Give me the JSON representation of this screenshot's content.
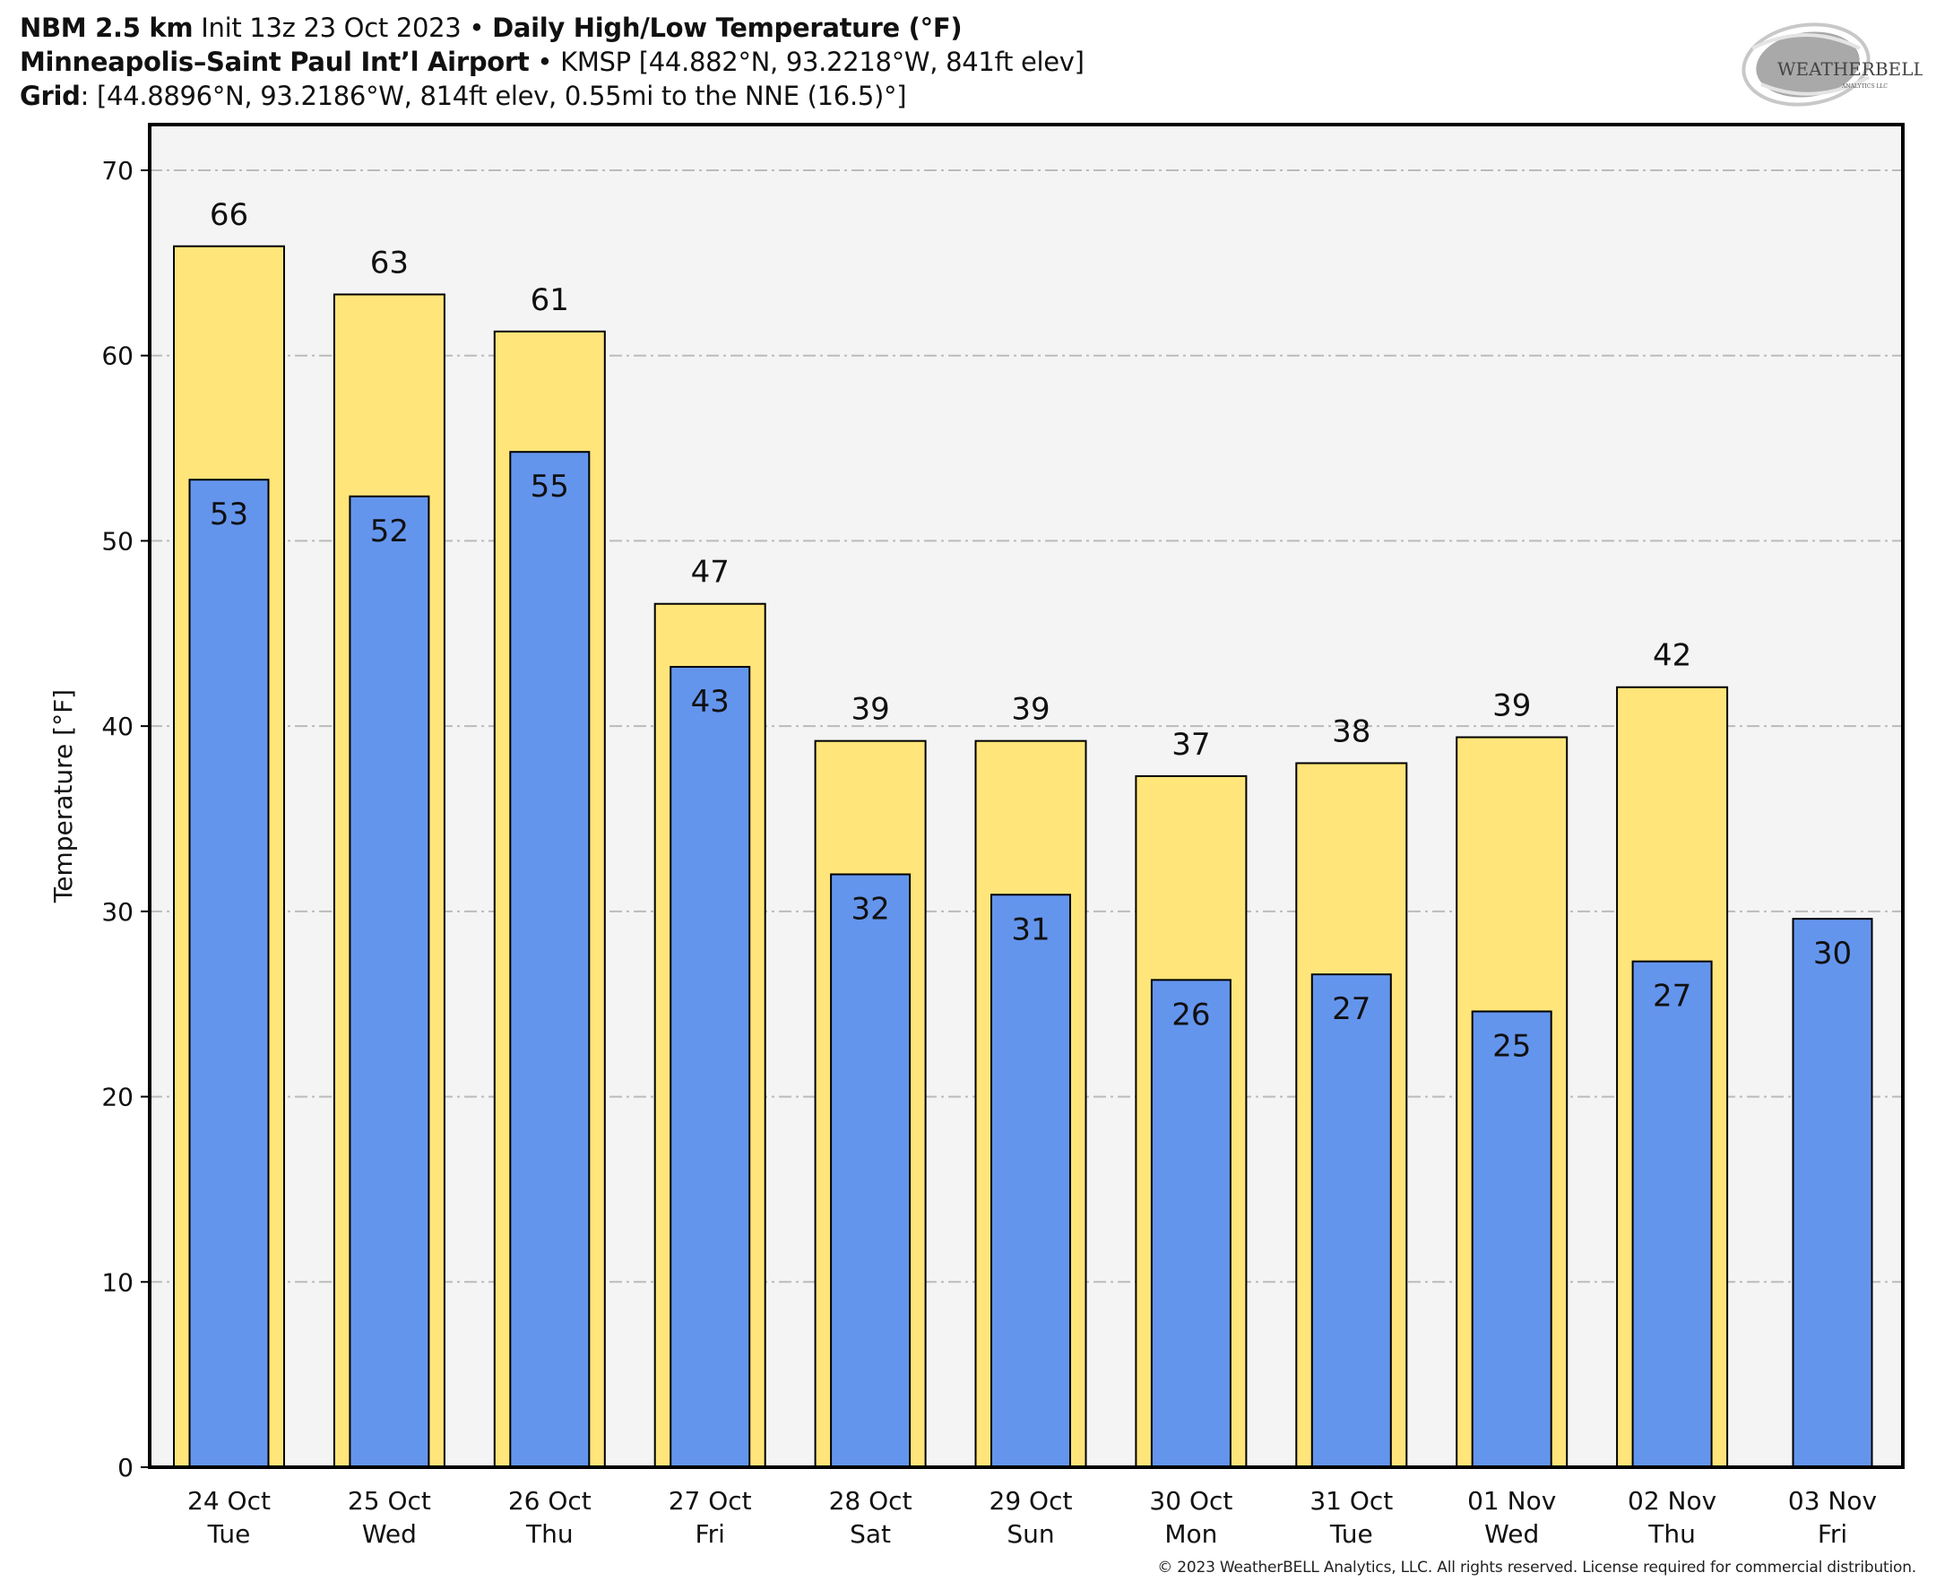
{
  "header": {
    "model": "NBM 2.5 km",
    "init": " Init 13z 23 Oct 2023 • ",
    "product": "Daily High/Low Temperature (°F)",
    "station_name": "Minneapolis–Saint Paul Int’l Airport",
    "station_info": " • KMSP [44.882°N, 93.2218°W, 841ft elev]",
    "grid_label": "Grid",
    "grid_info": ": [44.8896°N, 93.2186°W, 814ft elev, 0.55mi to the NNE (16.5)°]"
  },
  "logo": {
    "text_main": "WEATHERBELL",
    "text_sub": "ANALYTICS LLC"
  },
  "copyright": "© 2023 WeatherBELL Analytics, LLC. All rights reserved. License required for commercial distribution.",
  "colors": {
    "high": "#FFE57A",
    "low": "#6495ED",
    "plot_bg": "#F4F4F4",
    "grid": "#BBBBBB"
  },
  "chart_data": {
    "type": "bar",
    "title": "Daily High/Low Temperature (°F)",
    "xlabel": "",
    "ylabel": "Temperature [°F]",
    "ylim": [
      0,
      70
    ],
    "yticks": [
      0,
      10,
      20,
      30,
      40,
      50,
      60,
      70
    ],
    "grid": true,
    "categories": [
      {
        "date": "24 Oct",
        "day": "Tue"
      },
      {
        "date": "25 Oct",
        "day": "Wed"
      },
      {
        "date": "26 Oct",
        "day": "Thu"
      },
      {
        "date": "27 Oct",
        "day": "Fri"
      },
      {
        "date": "28 Oct",
        "day": "Sat"
      },
      {
        "date": "29 Oct",
        "day": "Sun"
      },
      {
        "date": "30 Oct",
        "day": "Mon"
      },
      {
        "date": "31 Oct",
        "day": "Tue"
      },
      {
        "date": "01 Nov",
        "day": "Wed"
      },
      {
        "date": "02 Nov",
        "day": "Thu"
      },
      {
        "date": "03 Nov",
        "day": "Fri"
      }
    ],
    "series": [
      {
        "name": "High",
        "values": [
          65.9,
          63.3,
          61.3,
          46.6,
          39.2,
          39.2,
          37.3,
          38.0,
          39.4,
          42.1,
          null
        ],
        "labels": [
          "66",
          "63",
          "61",
          "47",
          "39",
          "39",
          "37",
          "38",
          "39",
          "42",
          null
        ]
      },
      {
        "name": "Low",
        "values": [
          53.3,
          52.4,
          54.8,
          43.2,
          32.0,
          30.9,
          26.3,
          26.6,
          24.6,
          27.3,
          29.6
        ],
        "labels": [
          "53",
          "52",
          "55",
          "43",
          "32",
          "31",
          "26",
          "27",
          "25",
          "27",
          "30"
        ]
      }
    ]
  }
}
